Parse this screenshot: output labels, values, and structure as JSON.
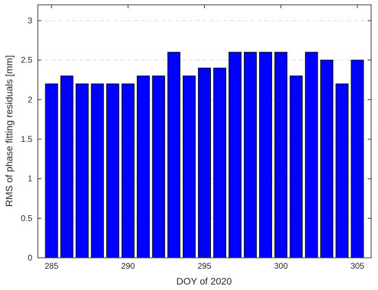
{
  "chart_data": {
    "type": "bar",
    "title": "",
    "xlabel": "DOY of 2020",
    "ylabel": "RMS of phase fitting residuals [mm]",
    "x": [
      285,
      286,
      287,
      288,
      289,
      290,
      291,
      292,
      293,
      294,
      295,
      296,
      297,
      298,
      299,
      300,
      301,
      302,
      303,
      304,
      305
    ],
    "values": [
      2.2,
      2.3,
      2.2,
      2.2,
      2.2,
      2.2,
      2.3,
      2.3,
      2.6,
      2.3,
      2.4,
      2.4,
      2.6,
      2.6,
      2.6,
      2.6,
      2.3,
      2.6,
      2.5,
      2.2,
      2.5
    ],
    "xlim": [
      284.1,
      305.9
    ],
    "ylim": [
      0,
      3.2
    ],
    "xticks": [
      285,
      290,
      295,
      300,
      305
    ],
    "yticks": [
      0,
      0.5,
      1,
      1.5,
      2,
      2.5,
      3
    ],
    "ytick_labels": [
      "0",
      "0.5",
      "1",
      "1.5",
      "2",
      "2.5",
      "3"
    ],
    "grid": "horizontal dashed",
    "legend": "none",
    "bar_color": "#0000ff",
    "edge_color": "#000000",
    "grid_color": "#d9d9d9"
  }
}
